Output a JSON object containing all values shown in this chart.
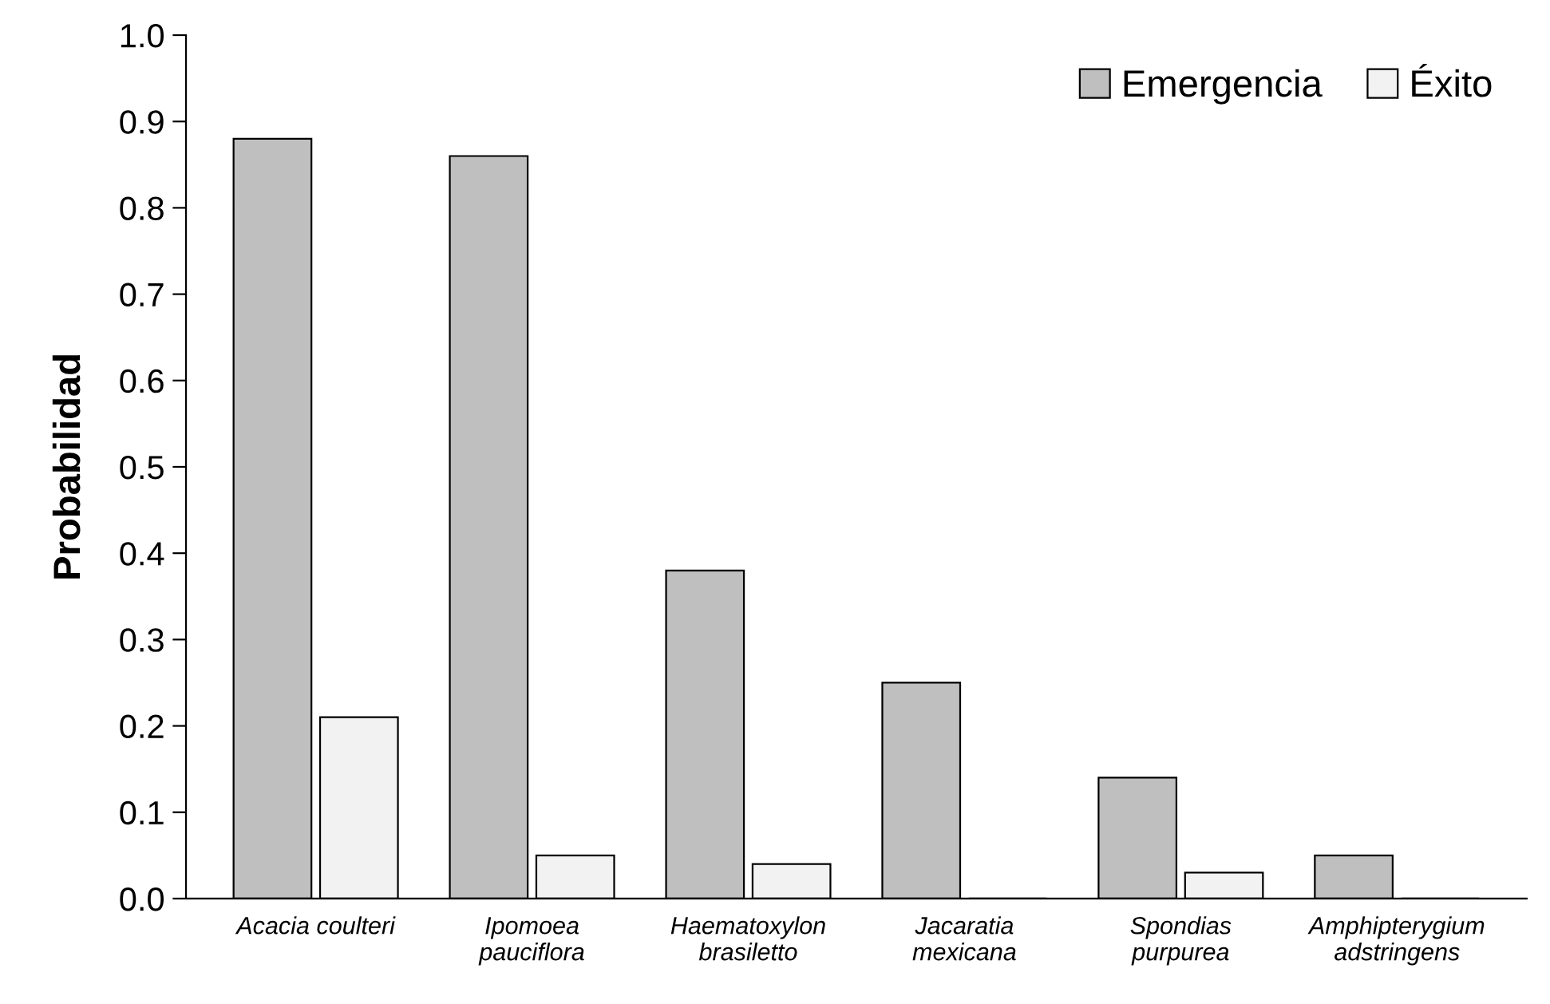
{
  "chart_data": {
    "type": "bar",
    "ylabel": "Probabilidad",
    "categories": [
      "Acacia coulteri",
      "Ipomoea\npauciflora",
      "Haematoxylon\nbrasiletto",
      "Jacaratia\nmexicana",
      "Spondias\npurpurea",
      "Amphipterygium\nadstringens"
    ],
    "series": [
      {
        "name": "Emergencia",
        "color": "#bfbfbf",
        "values": [
          0.88,
          0.86,
          0.38,
          0.25,
          0.14,
          0.05
        ]
      },
      {
        "name": "Éxito",
        "color": "#f2f2f2",
        "values": [
          0.21,
          0.05,
          0.04,
          0,
          0.03,
          0
        ]
      }
    ],
    "ylim": [
      0,
      1
    ],
    "yticks": [
      {
        "value": 0,
        "label": "0.0"
      },
      {
        "value": 0.1,
        "label": "0.1"
      },
      {
        "value": 0.2,
        "label": "0.2"
      },
      {
        "value": 0.3,
        "label": "0.3"
      },
      {
        "value": 0.4,
        "label": "0.4"
      },
      {
        "value": 0.5,
        "label": "0.5"
      },
      {
        "value": 0.6,
        "label": "0.6"
      },
      {
        "value": 0.7,
        "label": "0.7"
      },
      {
        "value": 0.8,
        "label": "0.8"
      },
      {
        "value": 0.9,
        "label": "0.9"
      },
      {
        "value": 1.0,
        "label": "1.0"
      }
    ],
    "grid": false,
    "legend": "top right"
  }
}
